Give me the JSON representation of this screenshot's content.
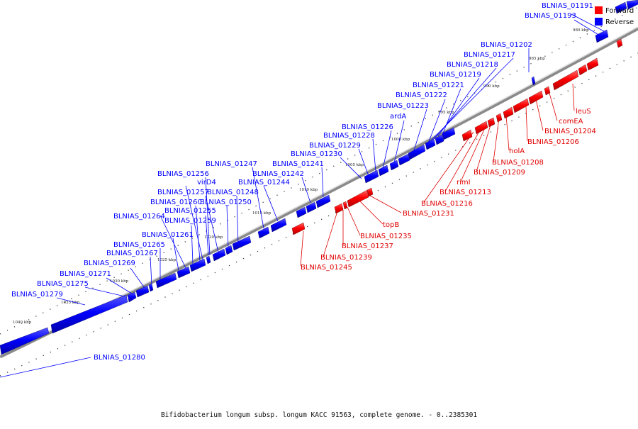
{
  "caption": "Bifidobacterium longum subsp. longum KACC 91563, complete genome. - 0..2385301",
  "legend": {
    "forward": "Forward",
    "reverse": "Reverse",
    "forward_color": "#ff0000",
    "reverse_color": "#0000ff"
  },
  "ticks": [
    "980 kbp",
    "985 kbp",
    "990 kbp",
    "995 kbp",
    "1000 kbp",
    "1005 kbp",
    "1010 kbp",
    "1015 kbp",
    "1020 kbp",
    "1025 kbp",
    "1030 kbp",
    "1035 kbp",
    "1040 kbp"
  ],
  "reverse_labels": [
    "BLNIAS_01191",
    "BLNIAS_01193",
    "BLNIAS_01202",
    "BLNIAS_01217",
    "BLNIAS_01218",
    "BLNIAS_01219",
    "BLNIAS_01221",
    "BLNIAS_01222",
    "BLNIAS_01223",
    "ardA",
    "BLNIAS_01226",
    "BLNIAS_01228",
    "BLNIAS_01229",
    "BLNIAS_01230",
    "BLNIAS_01241",
    "BLNIAS_01247",
    "BLNIAS_01242",
    "BLNIAS_01244",
    "BLNIAS_01256",
    "virD4",
    "BLNIAS_01257",
    "BLNIAS_01248",
    "BLNIAS_01260",
    "BLNIAS_01250",
    "BLNIAS_01255",
    "BLNIAS_01259",
    "BLNIAS_01264",
    "BLNIAS_01261",
    "BLNIAS_01265",
    "BLNIAS_01267",
    "BLNIAS_01269",
    "BLNIAS_01271",
    "BLNIAS_01275",
    "BLNIAS_01279",
    "BLNIAS_01280"
  ],
  "forward_labels": [
    "leuS",
    "comEA",
    "BLNIAS_01204",
    "BLNIAS_01206",
    "holA",
    "BLNIAS_01208",
    "BLNIAS_01209",
    "rimI",
    "BLNIAS_01213",
    "BLNIAS_01216",
    "BLNIAS_01231",
    "topB",
    "BLNIAS_01235",
    "BLNIAS_01237",
    "BLNIAS_01239",
    "BLNIAS_01245"
  ]
}
